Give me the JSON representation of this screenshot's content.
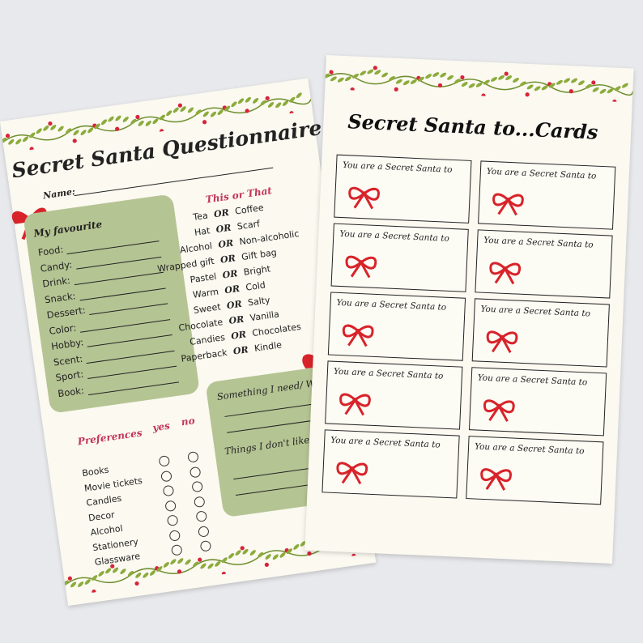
{
  "questionnaire": {
    "title": "Secret Santa Questionnaire",
    "name_label": "Name:",
    "favourite": {
      "heading": "My favourite",
      "fields": [
        "Food:",
        "Candy:",
        "Drink:",
        "Snack:",
        "Dessert:",
        "Color:",
        "Hobby:",
        "Scent:",
        "Sport:",
        "Book:"
      ]
    },
    "this_or_that": {
      "heading": "This or That",
      "or_label": "OR",
      "pairs": [
        [
          "Tea",
          "Coffee"
        ],
        [
          "Hat",
          "Scarf"
        ],
        [
          "Alcohol",
          "Non-alcoholic"
        ],
        [
          "Wrapped gift",
          "Gift bag"
        ],
        [
          "Pastel",
          "Bright"
        ],
        [
          "Warm",
          "Cold"
        ],
        [
          "Sweet",
          "Salty"
        ],
        [
          "Chocolate",
          "Vanilla"
        ],
        [
          "Candies",
          "Chocolates"
        ],
        [
          "Paperback",
          "Kindle"
        ]
      ]
    },
    "preferences": {
      "heading": "Preferences",
      "yes_label": "yes",
      "no_label": "no",
      "items": [
        "Books",
        "Movie tickets",
        "Candles",
        "Decor",
        "Alcohol",
        "Stationery",
        "Glassware"
      ]
    },
    "need_want": "Something I need/ Want",
    "dont_like": "Things I don't like/ want"
  },
  "cards": {
    "title": "Secret Santa to...Cards",
    "items": [
      "You are a Secret Santa to",
      "You are a Secret Santa to",
      "You are a Secret Santa to",
      "You are a Secret Santa to",
      "You are a Secret Santa to",
      "You are a Secret Santa to",
      "You are a Secret Santa to",
      "You are a Secret Santa to",
      "You are a Secret Santa to",
      "You are a Secret Santa to"
    ]
  },
  "colors": {
    "accent_red": "#d8232a",
    "heading_pink": "#c2365a",
    "panel_green": "#b5c493",
    "leaf_green": "#8bab3c",
    "paper": "#fbf9f0"
  }
}
